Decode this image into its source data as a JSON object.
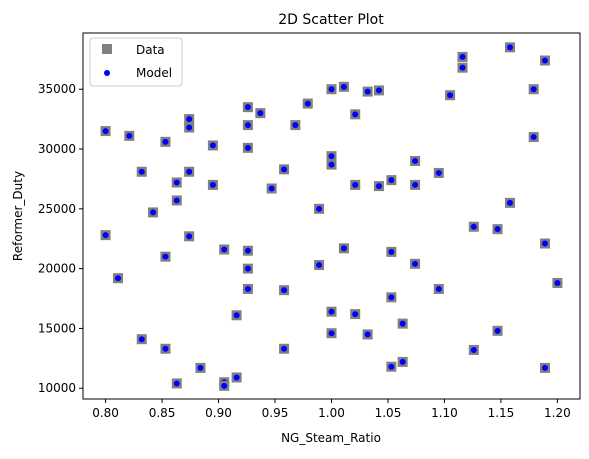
{
  "chart_data": {
    "type": "scatter",
    "title": "2D Scatter Plot",
    "xlabel": "NG_Steam_Ratio",
    "ylabel": "Reformer_Duty",
    "xlim": [
      0.78,
      1.22
    ],
    "ylim": [
      9100,
      39700
    ],
    "xticks": [
      0.8,
      0.85,
      0.9,
      0.95,
      1.0,
      1.05,
      1.1,
      1.15,
      1.2
    ],
    "xtick_labels": [
      "0.80",
      "0.85",
      "0.90",
      "0.95",
      "1.00",
      "1.05",
      "1.10",
      "1.15",
      "1.20"
    ],
    "yticks": [
      10000,
      15000,
      20000,
      25000,
      30000,
      35000
    ],
    "ytick_labels": [
      "10000",
      "15000",
      "20000",
      "25000",
      "30000",
      "35000"
    ],
    "grid": false,
    "legend_position": "top-left",
    "series": [
      {
        "name": "Data",
        "marker": "square",
        "color": "#808080"
      },
      {
        "name": "Model",
        "marker": "circle",
        "color": "#0000ff"
      }
    ],
    "points": [
      [
        0.8,
        31500
      ],
      [
        0.8,
        22800
      ],
      [
        0.811,
        19200
      ],
      [
        0.821,
        31100
      ],
      [
        0.832,
        28100
      ],
      [
        0.832,
        14100
      ],
      [
        0.842,
        24700
      ],
      [
        0.853,
        30600
      ],
      [
        0.853,
        21000
      ],
      [
        0.853,
        13300
      ],
      [
        0.863,
        27200
      ],
      [
        0.863,
        25700
      ],
      [
        0.863,
        10400
      ],
      [
        0.874,
        32500
      ],
      [
        0.874,
        31800
      ],
      [
        0.874,
        28100
      ],
      [
        0.874,
        22700
      ],
      [
        0.884,
        11700
      ],
      [
        0.895,
        30300
      ],
      [
        0.895,
        27000
      ],
      [
        0.905,
        21600
      ],
      [
        0.905,
        10500
      ],
      [
        0.905,
        10200
      ],
      [
        0.916,
        16100
      ],
      [
        0.916,
        10900
      ],
      [
        0.926,
        33500
      ],
      [
        0.926,
        32000
      ],
      [
        0.926,
        30100
      ],
      [
        0.926,
        21500
      ],
      [
        0.926,
        20000
      ],
      [
        0.926,
        18300
      ],
      [
        0.937,
        33000
      ],
      [
        0.947,
        26700
      ],
      [
        0.958,
        28300
      ],
      [
        0.958,
        18200
      ],
      [
        0.958,
        13300
      ],
      [
        0.968,
        32000
      ],
      [
        0.979,
        33800
      ],
      [
        0.989,
        25000
      ],
      [
        0.989,
        20300
      ],
      [
        1.0,
        35000
      ],
      [
        1.0,
        29400
      ],
      [
        1.0,
        28700
      ],
      [
        1.0,
        16400
      ],
      [
        1.0,
        14600
      ],
      [
        1.011,
        35200
      ],
      [
        1.011,
        21700
      ],
      [
        1.021,
        32900
      ],
      [
        1.021,
        27000
      ],
      [
        1.021,
        16200
      ],
      [
        1.032,
        34800
      ],
      [
        1.032,
        14500
      ],
      [
        1.042,
        34900
      ],
      [
        1.042,
        26900
      ],
      [
        1.053,
        27400
      ],
      [
        1.053,
        21400
      ],
      [
        1.053,
        17600
      ],
      [
        1.053,
        11800
      ],
      [
        1.063,
        15400
      ],
      [
        1.063,
        12200
      ],
      [
        1.074,
        29000
      ],
      [
        1.074,
        27000
      ],
      [
        1.074,
        20400
      ],
      [
        1.095,
        28000
      ],
      [
        1.095,
        18300
      ],
      [
        1.105,
        34500
      ],
      [
        1.116,
        37700
      ],
      [
        1.116,
        36800
      ],
      [
        1.126,
        23500
      ],
      [
        1.126,
        13200
      ],
      [
        1.147,
        23300
      ],
      [
        1.147,
        14800
      ],
      [
        1.158,
        38500
      ],
      [
        1.158,
        25500
      ],
      [
        1.179,
        35000
      ],
      [
        1.179,
        31000
      ],
      [
        1.189,
        37400
      ],
      [
        1.189,
        22100
      ],
      [
        1.189,
        11700
      ],
      [
        1.2,
        18800
      ]
    ]
  }
}
